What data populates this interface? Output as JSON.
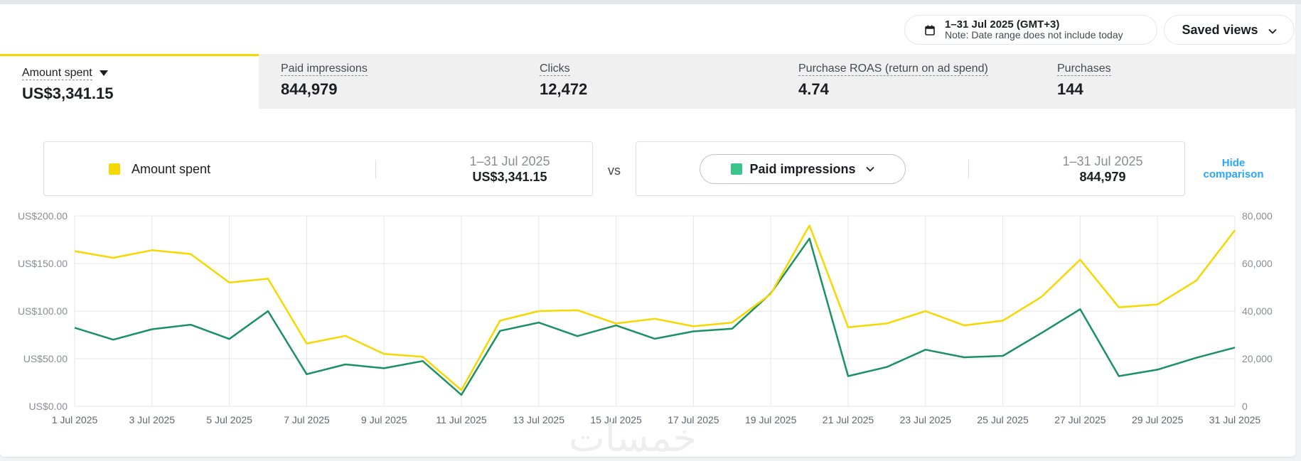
{
  "header": {
    "date_range": "1–31 Jul 2025 (GMT+3)",
    "date_note": "Note: Date range does not include today",
    "saved_views_label": "Saved views",
    "calendar_icon": "calendar-icon",
    "chevron_icon": "chevron-down-icon"
  },
  "metrics": [
    {
      "label": "Amount spent",
      "value": "US$3,341.15",
      "active": true
    },
    {
      "label": "Paid impressions",
      "value": "844,979",
      "active": false
    },
    {
      "label": "Clicks",
      "value": "12,472",
      "active": false
    },
    {
      "label": "Purchase ROAS (return on ad spend)",
      "value": "4.74",
      "active": false
    },
    {
      "label": "Purchases",
      "value": "144",
      "active": false
    }
  ],
  "comparison": {
    "left": {
      "series": "Amount spent",
      "period": "1–31 Jul 2025",
      "value": "US$3,341.15",
      "color": "#f5d800"
    },
    "vs_label": "vs",
    "right": {
      "series": "Paid impressions",
      "period": "1–31 Jul 2025",
      "value": "844,979",
      "color": "#3cc48b"
    },
    "hide_label_line1": "Hide",
    "hide_label_line2": "comparison"
  },
  "colors": {
    "accent_yellow": "#f5d800",
    "green_line": "#1a9160",
    "link_blue": "#29a6f5"
  },
  "chart_data": {
    "type": "line",
    "x": [
      "1 Jul 2025",
      "2 Jul 2025",
      "3 Jul 2025",
      "4 Jul 2025",
      "5 Jul 2025",
      "6 Jul 2025",
      "7 Jul 2025",
      "8 Jul 2025",
      "9 Jul 2025",
      "10 Jul 2025",
      "11 Jul 2025",
      "12 Jul 2025",
      "13 Jul 2025",
      "14 Jul 2025",
      "15 Jul 2025",
      "16 Jul 2025",
      "17 Jul 2025",
      "18 Jul 2025",
      "19 Jul 2025",
      "20 Jul 2025",
      "21 Jul 2025",
      "22 Jul 2025",
      "23 Jul 2025",
      "24 Jul 2025",
      "25 Jul 2025",
      "26 Jul 2025",
      "27 Jul 2025",
      "28 Jul 2025",
      "29 Jul 2025",
      "30 Jul 2025",
      "31 Jul 2025"
    ],
    "x_tick_labels": [
      "1 Jul 2025",
      "3 Jul 2025",
      "5 Jul 2025",
      "7 Jul 2025",
      "9 Jul 2025",
      "11 Jul 2025",
      "13 Jul 2025",
      "15 Jul 2025",
      "17 Jul 2025",
      "19 Jul 2025",
      "21 Jul 2025",
      "23 Jul 2025",
      "25 Jul 2025",
      "27 Jul 2025",
      "29 Jul 2025",
      "31 Jul 2025"
    ],
    "y_left_ticks": [
      "US$0.00",
      "US$50.00",
      "US$100.00",
      "US$150.00",
      "US$200.00"
    ],
    "y_right_ticks": [
      "0",
      "20,000",
      "40,000",
      "60,000",
      "80,000"
    ],
    "y_left_lim": [
      0,
      200
    ],
    "y_right_lim": [
      0,
      80000
    ],
    "grid": true,
    "series": [
      {
        "name": "Amount spent",
        "axis": "left",
        "color": "#f5d800",
        "values": [
          163,
          156,
          164,
          160,
          130,
          134,
          66,
          74,
          55,
          52,
          17,
          90,
          100,
          101,
          87,
          92,
          84,
          88,
          118,
          190,
          83,
          87,
          100,
          85,
          90,
          115,
          154,
          104,
          107,
          132,
          185
        ]
      },
      {
        "name": "Paid impressions",
        "axis": "right",
        "color": "#1a9160",
        "values": [
          33000,
          28000,
          32400,
          34300,
          28300,
          40000,
          13500,
          17600,
          16000,
          19000,
          4800,
          31700,
          35200,
          29500,
          34000,
          28400,
          31500,
          32600,
          47500,
          70500,
          12700,
          16500,
          23800,
          20600,
          21200,
          30800,
          40800,
          12700,
          15400,
          20400,
          24700
        ]
      }
    ]
  },
  "watermark": "خمسات"
}
